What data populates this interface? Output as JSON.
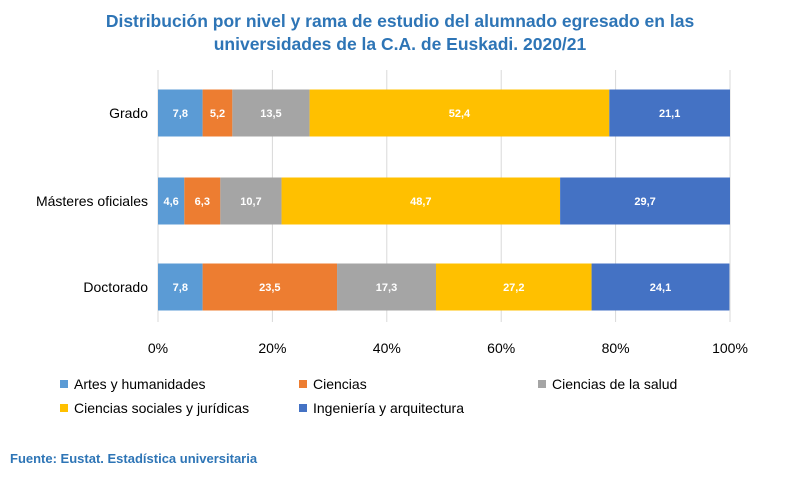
{
  "title": {
    "line1": "Distribución por nivel y rama de estudio del alumnado egresado en las",
    "line2": "universidades de la C.A. de Euskadi. 2020/21"
  },
  "source": "Fuente: Eustat. Estadística universitaria",
  "chart_data": {
    "type": "bar",
    "orientation": "horizontal",
    "stacked": "percent",
    "title": "Distribución por nivel y rama de estudio del alumnado egresado en las universidades de la C.A. de Euskadi. 2020/21",
    "categories": [
      "Grado",
      "Másteres oficiales",
      "Doctorado"
    ],
    "series": [
      {
        "name": "Artes y humanidades",
        "color": "#5B9BD5",
        "values": [
          7.8,
          4.6,
          7.8
        ],
        "labels": [
          "7,8",
          "4,6",
          "7,8"
        ]
      },
      {
        "name": "Ciencias",
        "color": "#ED7D31",
        "values": [
          5.2,
          6.3,
          23.5
        ],
        "labels": [
          "5,2",
          "6,3",
          "23,5"
        ]
      },
      {
        "name": "Ciencias de la salud",
        "color": "#A5A5A5",
        "values": [
          13.5,
          10.7,
          17.3
        ],
        "labels": [
          "13,5",
          "10,7",
          "17,3"
        ]
      },
      {
        "name": "Ciencias sociales y jurídicas",
        "color": "#FFC000",
        "values": [
          52.4,
          48.7,
          27.2
        ],
        "labels": [
          "52,4",
          "48,7",
          "27,2"
        ]
      },
      {
        "name": "Ingeniería y arquitectura",
        "color": "#4472C4",
        "values": [
          21.1,
          29.7,
          24.1
        ],
        "labels": [
          "21,1",
          "29,7",
          "24,1"
        ]
      }
    ],
    "xlim": [
      0,
      100
    ],
    "xticks": [
      "0%",
      "20%",
      "40%",
      "60%",
      "80%",
      "100%"
    ],
    "grid": true,
    "legend_position": "bottom"
  }
}
